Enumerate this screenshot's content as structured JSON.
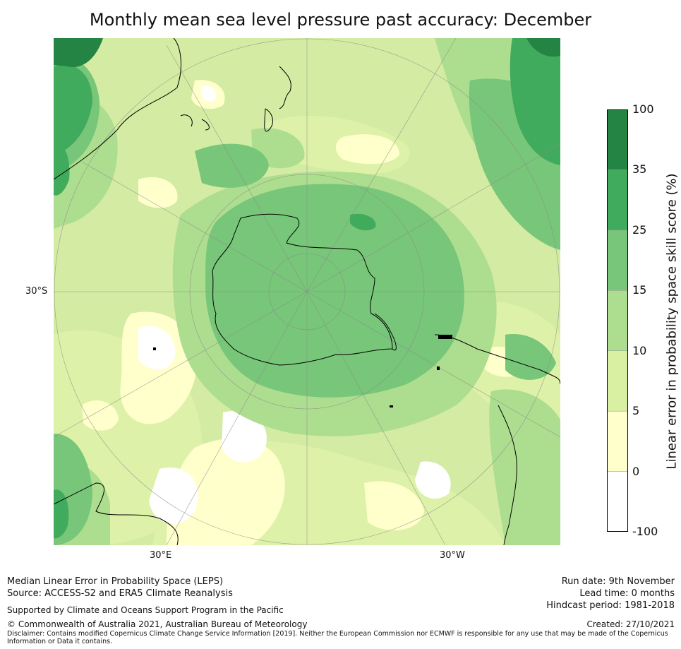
{
  "title": "Monthly mean sea level pressure past accuracy: December",
  "map": {
    "projection": "south-polar stereographic",
    "lat_label": "30°S",
    "lon_labels": [
      "30°E",
      "30°W"
    ],
    "regions": [
      "Australia",
      "New Zealand",
      "Antarctica",
      "South America",
      "Africa"
    ]
  },
  "colorbar": {
    "title": "Linear error in probability space skill score (%)",
    "ticks": [
      "100",
      "35",
      "25",
      "15",
      "10",
      "5",
      "0",
      "-100"
    ],
    "colors": [
      "#ffffff",
      "#ffffcc",
      "#d9f0a3",
      "#addd8e",
      "#78c679",
      "#41ab5d",
      "#238443"
    ]
  },
  "footer": {
    "left_line1": "Median Linear Error in Probability Space (LEPS)",
    "left_line2": "Source: ACCESS-S2 and ERA5 Climate Reanalysis",
    "support": "Supported by Climate and Oceans Support Program in the Pacific",
    "copyright": "© Commonwealth of Australia 2021, Australian Bureau of Meteorology",
    "disclaimer_line1": "Disclaimer: Contains modified Copernicus Climate Change Service Information [2019]. Neither the European Commission nor ECMWF is responsible for any use that may be made of the Copernicus",
    "disclaimer_line2": "Information or Data it contains.",
    "run_date": "Run date: 9th November",
    "lead_time": "Lead time: 0 months",
    "hindcast": "Hindcast period: 1981-2018",
    "created": "Created: 27/10/2021"
  }
}
